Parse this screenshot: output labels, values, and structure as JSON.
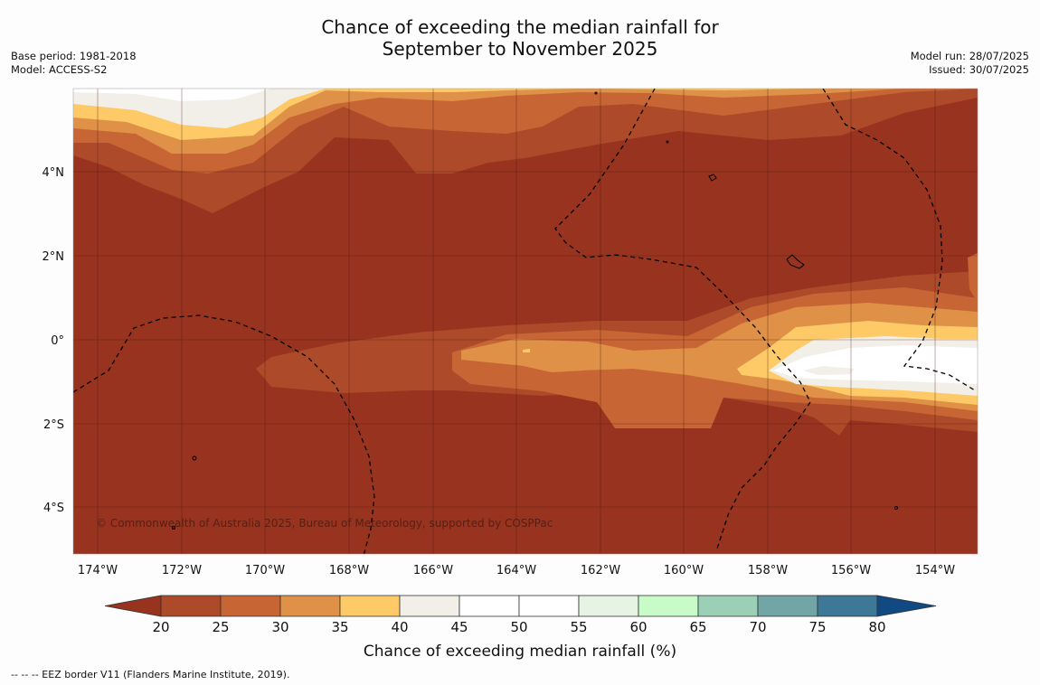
{
  "title_line1": "Chance of exceeding the median rainfall for",
  "title_line2": "September to November 2025",
  "base_period": "Base period: 1981-2018",
  "model": "Model: ACCESS-S2",
  "model_run": "Model run: 28/07/2025",
  "issued": "Issued: 30/07/2025",
  "copyright": "© Commonwealth of Australia 2025, Bureau of Meteorology, supported by COSPPac",
  "lat_labels": [
    "4°N",
    "2°N",
    "0°",
    "2°S",
    "4°S"
  ],
  "lon_labels": [
    "174°W",
    "172°W",
    "170°W",
    "168°W",
    "166°W",
    "164°W",
    "162°W",
    "160°W",
    "158°W",
    "156°W",
    "154°W"
  ],
  "colorbar": {
    "title": "Chance of exceeding median rainfall (%)",
    "ticks": [
      "20",
      "25",
      "30",
      "35",
      "40",
      "45",
      "50",
      "55",
      "60",
      "65",
      "70",
      "75",
      "80"
    ],
    "colors": [
      "#97331f",
      "#ad4a2a",
      "#c76634",
      "#de9147",
      "#fdca67",
      "#f2eee8",
      "#ffffff",
      "#ffffff",
      "#e6f4e4",
      "#c8fbc8",
      "#9bd0b6",
      "#72a5a5",
      "#3d7897",
      "#114983"
    ]
  },
  "eez_note": "--  --  -- EEZ border V11 (Flanders Marine Institute, 2019)."
}
